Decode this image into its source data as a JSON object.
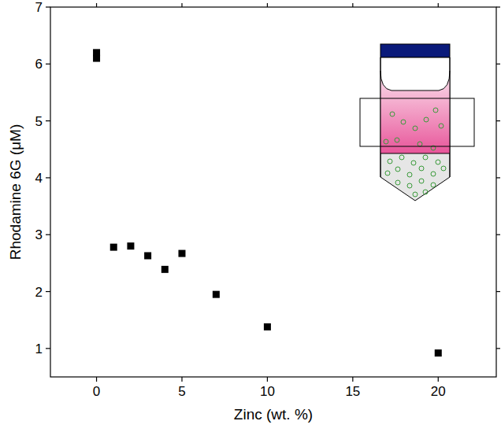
{
  "chart_data": {
    "type": "scatter",
    "x_label": "Zinc (wt. %)",
    "y_label": "Rhodamine 6G (μM)",
    "x": [
      0,
      0,
      1,
      2,
      3,
      4,
      5,
      7,
      10,
      20
    ],
    "values": [
      6.2,
      6.1,
      2.78,
      2.8,
      2.63,
      2.39,
      2.67,
      1.95,
      1.38,
      0.92
    ],
    "color": "#000000",
    "marker": "square",
    "xlim": [
      -2.7,
      23.4
    ],
    "ylim": [
      0.5,
      7
    ],
    "xticks": [
      0,
      5,
      10,
      15,
      20
    ],
    "yticks": [
      1,
      2,
      3,
      4,
      5,
      6,
      7
    ],
    "grid": false
  }
}
